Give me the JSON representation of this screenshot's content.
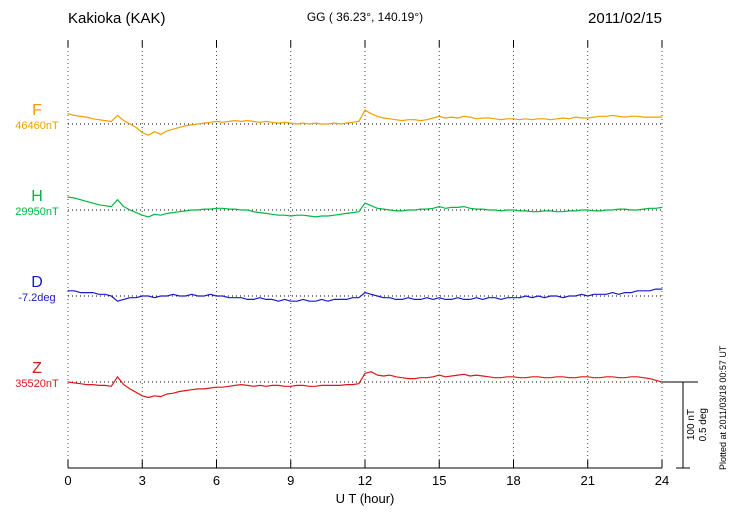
{
  "header": {
    "station": "Kakioka (KAK)",
    "coords": "GG ( 36.23°, 140.19°)",
    "date": "2011/02/15"
  },
  "footer_note": "Plotted at 2011/03/18 00:57 UT",
  "chart_data": {
    "type": "line",
    "title": "Kakioka (KAK) magnetogram",
    "xlabel": "U T (hour)",
    "x_unit": "hour",
    "xlim": [
      0,
      24
    ],
    "x_ticks": [
      0,
      3,
      6,
      9,
      12,
      15,
      18,
      21,
      24
    ],
    "x_step_hours": 0.25,
    "grid": "vertical dotted lines every 3 hours; dotted horizontal baseline for each trace",
    "legend_position": "left baseline labels",
    "scale_bar": {
      "labels": [
        "100 nT",
        "0.5 deg"
      ],
      "nT_per_division": 100,
      "deg_per_division": 0.5
    },
    "series": [
      {
        "name": "F",
        "unit": "nT",
        "baseline_label": "46460nT",
        "baseline_value": 46460,
        "color": "#f0a000",
        "offsets": [
          12,
          10,
          9,
          8,
          6,
          5,
          4,
          3,
          10,
          4,
          0,
          -4,
          -10,
          -13,
          -9,
          -12,
          -8,
          -6,
          -4,
          -2,
          -1,
          0,
          1,
          2,
          3,
          2,
          3,
          4,
          3,
          4,
          3,
          2,
          3,
          2,
          1,
          2,
          1,
          0,
          1,
          0,
          1,
          0,
          0,
          1,
          0,
          1,
          2,
          3,
          16,
          12,
          9,
          7,
          6,
          5,
          4,
          5,
          5,
          4,
          5,
          7,
          9,
          7,
          8,
          7,
          9,
          8,
          6,
          7,
          7,
          6,
          5,
          6,
          6,
          5,
          6,
          5,
          6,
          6,
          5,
          6,
          7,
          6,
          8,
          7,
          7,
          8,
          9,
          9,
          10,
          9,
          8,
          9,
          9,
          8,
          8,
          8,
          8
        ]
      },
      {
        "name": "H",
        "unit": "nT",
        "baseline_label": "29950nT",
        "baseline_value": 29950,
        "color": "#00b840",
        "offsets": [
          15,
          14,
          12,
          10,
          8,
          6,
          5,
          4,
          12,
          4,
          0,
          -3,
          -6,
          -8,
          -5,
          -6,
          -4,
          -3,
          -2,
          -1,
          0,
          0,
          1,
          1,
          2,
          2,
          1,
          1,
          0,
          0,
          -2,
          -3,
          -4,
          -5,
          -6,
          -6,
          -7,
          -6,
          -6,
          -7,
          -8,
          -7,
          -7,
          -6,
          -5,
          -4,
          -3,
          -2,
          8,
          5,
          2,
          1,
          0,
          -1,
          -1,
          0,
          0,
          1,
          1,
          2,
          4,
          2,
          3,
          3,
          4,
          2,
          1,
          1,
          0,
          0,
          -1,
          0,
          0,
          -1,
          -1,
          -2,
          -2,
          -1,
          -1,
          -2,
          -2,
          -1,
          -1,
          0,
          0,
          -1,
          -1,
          0,
          0,
          1,
          1,
          0,
          0,
          1,
          2,
          2,
          3
        ]
      },
      {
        "name": "D",
        "unit": "deg",
        "baseline_label": "-7.2deg",
        "baseline_value": -7.2,
        "color": "#1a1acc",
        "offsets": [
          0.03,
          0.03,
          0.02,
          0.02,
          0.02,
          0.01,
          0.01,
          0,
          -0.03,
          -0.02,
          -0.01,
          -0.01,
          0,
          0,
          -0.01,
          0,
          0,
          0.01,
          0,
          0,
          0.01,
          0,
          0,
          0.01,
          0,
          0,
          -0.01,
          -0.01,
          -0.01,
          -0.02,
          -0.02,
          -0.01,
          -0.02,
          -0.02,
          -0.03,
          -0.02,
          -0.03,
          -0.03,
          -0.02,
          -0.03,
          -0.03,
          -0.02,
          -0.03,
          -0.02,
          -0.02,
          -0.02,
          -0.01,
          -0.01,
          0.02,
          0.01,
          0,
          -0.01,
          -0.01,
          -0.02,
          -0.02,
          -0.01,
          -0.02,
          -0.02,
          -0.01,
          -0.02,
          -0.01,
          -0.02,
          -0.02,
          -0.01,
          -0.02,
          -0.02,
          -0.01,
          -0.02,
          -0.01,
          -0.01,
          -0.02,
          -0.01,
          -0.01,
          -0.01,
          0,
          -0.01,
          0,
          -0.01,
          0,
          0,
          -0.01,
          0,
          0,
          0.01,
          0,
          0.01,
          0.01,
          0.01,
          0.02,
          0.01,
          0.02,
          0.02,
          0.03,
          0.03,
          0.03,
          0.04,
          0.04
        ]
      },
      {
        "name": "Z",
        "unit": "nT",
        "baseline_label": "35520nT",
        "baseline_value": 35520,
        "color": "#e01818",
        "offsets": [
          0,
          -1,
          -2,
          -3,
          -3,
          -4,
          -4,
          -5,
          6,
          -3,
          -8,
          -12,
          -16,
          -18,
          -16,
          -17,
          -14,
          -13,
          -11,
          -10,
          -9,
          -8,
          -8,
          -7,
          -6,
          -6,
          -5,
          -4,
          -3,
          -4,
          -5,
          -4,
          -5,
          -4,
          -4,
          -5,
          -5,
          -4,
          -4,
          -5,
          -5,
          -4,
          -4,
          -4,
          -4,
          -3,
          -3,
          -2,
          10,
          12,
          8,
          7,
          8,
          6,
          5,
          4,
          4,
          5,
          5,
          6,
          8,
          6,
          7,
          8,
          9,
          7,
          8,
          7,
          6,
          5,
          5,
          6,
          6,
          5,
          5,
          6,
          6,
          5,
          5,
          6,
          6,
          5,
          5,
          6,
          6,
          5,
          5,
          6,
          6,
          5,
          5,
          6,
          6,
          5,
          4,
          2,
          0
        ]
      }
    ]
  }
}
